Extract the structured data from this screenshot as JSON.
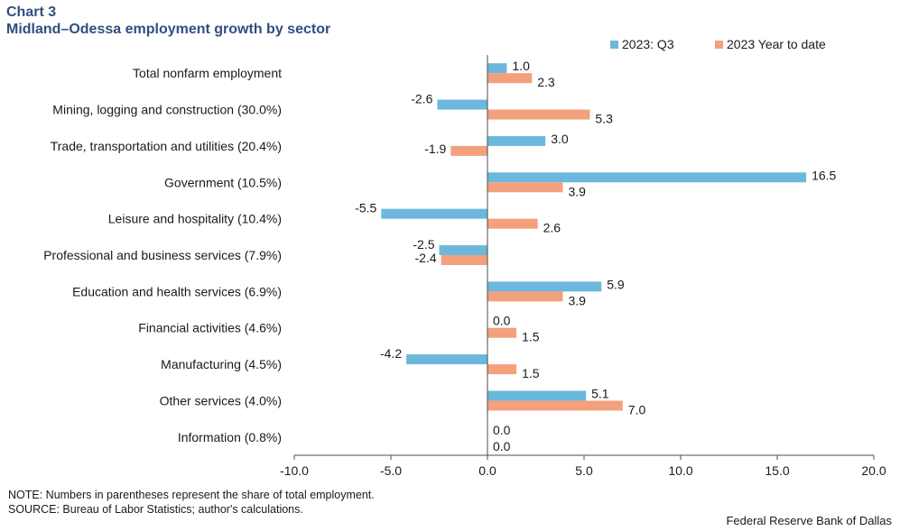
{
  "header": {
    "label": "Chart 3",
    "title": "Midland–Odessa employment growth by sector"
  },
  "chart_data": {
    "type": "bar",
    "orientation": "horizontal",
    "categories": [
      "Total nonfarm employment",
      "Mining, logging and construction (30.0%)",
      "Trade, transportation and utilities (20.4%)",
      "Government (10.5%)",
      "Leisure and hospitality (10.4%)",
      "Professional and business services (7.9%)",
      "Education and health services (6.9%)",
      "Financial activities (4.6%)",
      "Manufacturing (4.5%)",
      "Other services (4.0%)",
      "Information (0.8%)"
    ],
    "series": [
      {
        "name": "2023: Q3",
        "color": "#6cb8dc",
        "values": [
          1.0,
          -2.6,
          3.0,
          16.5,
          -5.5,
          -2.5,
          5.9,
          0.0,
          -4.2,
          5.1,
          0.0
        ],
        "labels": [
          "1.0",
          "-2.6",
          "3.0",
          "16.5",
          "-5.5",
          "-2.5",
          "5.9",
          "0.0",
          "-4.2",
          "5.1",
          "0.0"
        ]
      },
      {
        "name": "2023 Year to date",
        "color": "#f4a07d",
        "values": [
          2.3,
          5.3,
          -1.9,
          3.9,
          2.6,
          -2.4,
          3.9,
          1.5,
          1.5,
          7.0,
          0.0
        ],
        "labels": [
          "2.3",
          "5.3",
          "-1.9",
          "3.9",
          "2.6",
          "-2.4",
          "3.9",
          "1.5",
          "1.5",
          "7.0",
          "0.0"
        ]
      }
    ],
    "xlim": [
      -10,
      20
    ],
    "xticks": [
      -10,
      -5,
      0,
      5,
      10,
      15,
      20
    ],
    "xtick_labels": [
      "-10.0",
      "-5.0",
      "0.0",
      "5.0",
      "10.0",
      "15.0",
      "20.0"
    ],
    "legend": "top-right",
    "grid": false
  },
  "footer": {
    "note": "NOTE: Numbers in parentheses represent the share of total employment.",
    "source": "SOURCE: Bureau of Labor Statistics; author's calculations.",
    "credit": "Federal Reserve Bank of Dallas"
  }
}
